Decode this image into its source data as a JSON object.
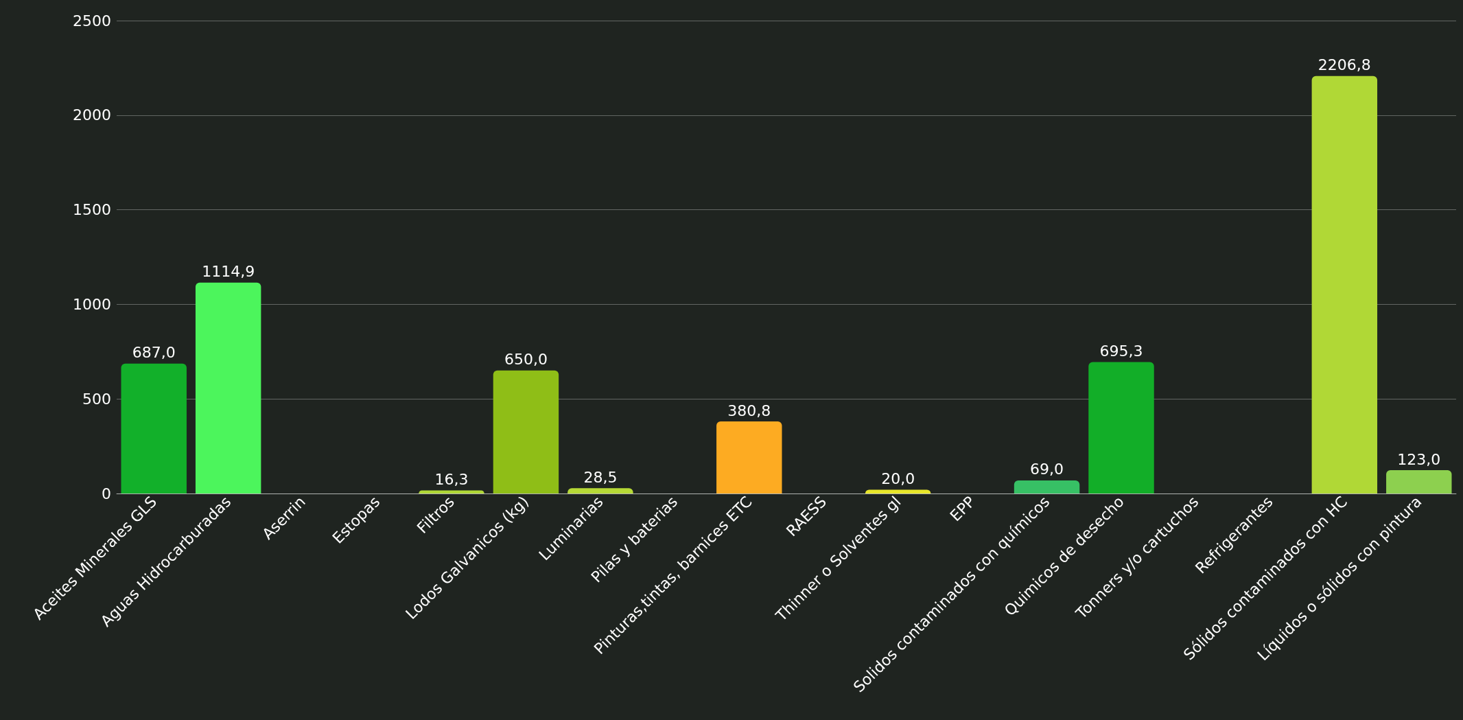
{
  "chart_data": {
    "type": "bar",
    "categories": [
      "Aceites Minerales GLS",
      "Aguas Hidrocarburadas",
      "Aserrin",
      "Estopas",
      "Filtros",
      "Lodos Galvanicos (kg)",
      "Luminarias",
      "Pilas y baterias",
      "Pinturas,tintas, barnices ETC",
      "RAESS",
      "Thinner o Solventes gl",
      "EPP",
      "Solidos contaminados con químicos",
      "Quimicos de desecho",
      "Tonners y/o cartuchos",
      "Refrigerantes",
      "Sólidos contaminados con HC",
      "Líquidos o sólidos con pintura"
    ],
    "values": [
      687.0,
      1114.9,
      null,
      null,
      16.3,
      650.0,
      28.5,
      null,
      380.8,
      null,
      20.0,
      null,
      69.0,
      695.3,
      null,
      null,
      2206.8,
      123.0
    ],
    "value_labels": [
      "687,0",
      "1114,9",
      null,
      null,
      "16,3",
      "650,0",
      "28,5",
      null,
      "380,8",
      null,
      "20,0",
      null,
      "69,0",
      "695,3",
      null,
      null,
      "2206,8",
      "123,0"
    ],
    "colors": [
      "#12b02a",
      "#4cf55c",
      "#888888",
      "#888888",
      "#b0d836",
      "#8fbe17",
      "#b6d936",
      "#888888",
      "#fdab22",
      "#888888",
      "#e8e62a",
      "#888888",
      "#37c065",
      "#12ae28",
      "#888888",
      "#888888",
      "#b0d836",
      "#8dd04f"
    ],
    "ylim": [
      0,
      2500
    ],
    "yticks": [
      0,
      500,
      1000,
      1500,
      2000,
      2500
    ],
    "grid": "y"
  }
}
